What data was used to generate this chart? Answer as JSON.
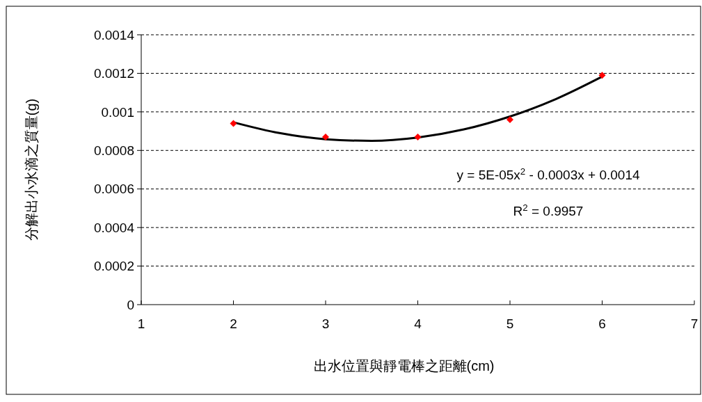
{
  "chart_data": {
    "type": "scatter",
    "xlabel": "出水位置與靜電棒之距離(cm)",
    "ylabel": "分解出小水滴之質量(g)",
    "xlim": [
      1,
      7
    ],
    "xticks": [
      1,
      2,
      3,
      4,
      5,
      6,
      7
    ],
    "ylim": [
      0,
      0.0014
    ],
    "yticks": [
      0,
      0.0002,
      0.0004,
      0.0006,
      0.0008,
      0.001,
      0.0012,
      0.0014
    ],
    "grid": "y",
    "series": [
      {
        "type": "line",
        "color": "#000000",
        "marker": "none",
        "x": [
          2,
          2.5,
          3,
          3.5,
          4,
          4.5,
          5,
          5.5,
          6
        ],
        "values": [
          0.000946,
          0.00089,
          0.000858,
          0.00085,
          0.000867,
          0.000909,
          0.000976,
          0.001067,
          0.001183
        ]
      },
      {
        "color": "#ff0000",
        "marker": "diamond",
        "x": [
          2,
          3,
          4,
          5,
          6
        ],
        "values": [
          0.00094,
          0.00087,
          0.00087,
          0.00096,
          0.00119
        ]
      }
    ],
    "annotations": [
      "y = 5E-05x$^{2}$ - 0.0003x + 0.0014",
      "R$^{2}$ = 0.9957"
    ]
  }
}
